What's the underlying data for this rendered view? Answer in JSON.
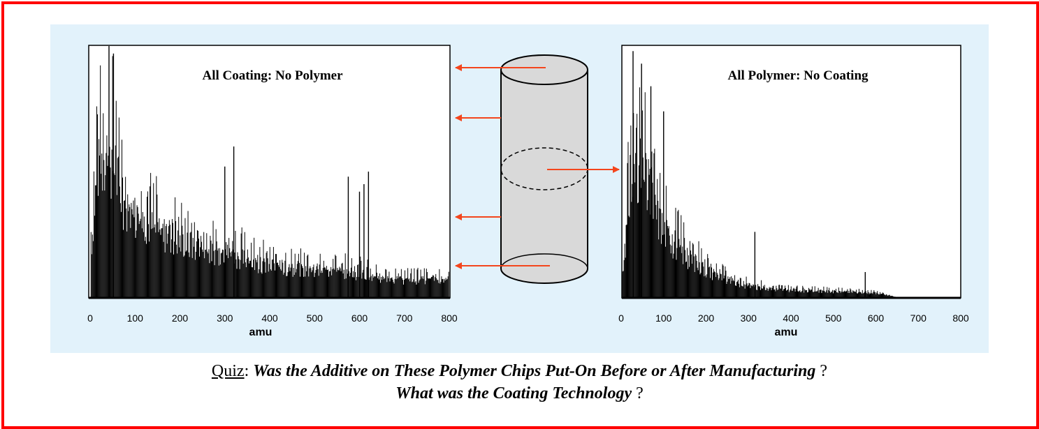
{
  "colors": {
    "frame": "#ff0000",
    "panel": "#e2f2fb",
    "arrow": "#f4451c",
    "cylinder": "#d9d9d9",
    "trace": "#000000"
  },
  "chart_data": [
    {
      "type": "line",
      "title": "All Coating: No Polymer",
      "xlabel": "amu",
      "ylabel": "",
      "xlim": [
        0,
        800
      ],
      "x_ticks": [
        "0",
        "100",
        "200",
        "300",
        "400",
        "500",
        "600",
        "700",
        "800"
      ],
      "grid": false,
      "spectrum": {
        "envelope": [
          [
            0,
            0.25
          ],
          [
            15,
            0.9
          ],
          [
            30,
            0.98
          ],
          [
            50,
            0.98
          ],
          [
            80,
            0.62
          ],
          [
            120,
            0.55
          ],
          [
            160,
            0.46
          ],
          [
            200,
            0.4
          ],
          [
            260,
            0.33
          ],
          [
            300,
            0.32
          ],
          [
            350,
            0.27
          ],
          [
            400,
            0.22
          ],
          [
            450,
            0.2
          ],
          [
            500,
            0.19
          ],
          [
            550,
            0.18
          ],
          [
            600,
            0.17
          ],
          [
            650,
            0.12
          ],
          [
            700,
            0.12
          ],
          [
            800,
            0.12
          ]
        ],
        "prominent_peaks": [
          [
            42,
            1.0
          ],
          [
            52,
            0.97
          ],
          [
            300,
            0.52
          ],
          [
            320,
            0.6
          ],
          [
            575,
            0.48
          ],
          [
            600,
            0.42
          ],
          [
            610,
            0.45
          ],
          [
            620,
            0.5
          ]
        ],
        "baseline_floor": 0.06,
        "spacing_amu": 7
      }
    },
    {
      "type": "line",
      "title": "All Polymer: No Coating",
      "xlabel": "amu",
      "ylabel": "",
      "xlim": [
        0,
        800
      ],
      "x_ticks": [
        "0",
        "100",
        "200",
        "300",
        "400",
        "500",
        "600",
        "700",
        "800"
      ],
      "grid": false,
      "spectrum": {
        "envelope": [
          [
            0,
            0.05
          ],
          [
            20,
            0.75
          ],
          [
            40,
            0.95
          ],
          [
            60,
            0.8
          ],
          [
            90,
            0.55
          ],
          [
            120,
            0.4
          ],
          [
            160,
            0.28
          ],
          [
            200,
            0.2
          ],
          [
            250,
            0.12
          ],
          [
            300,
            0.08
          ],
          [
            350,
            0.06
          ],
          [
            400,
            0.05
          ],
          [
            500,
            0.04
          ],
          [
            600,
            0.03
          ],
          [
            650,
            0.0
          ],
          [
            800,
            0.0
          ]
        ],
        "prominent_peaks": [
          [
            28,
            0.98
          ],
          [
            48,
            0.93
          ],
          [
            70,
            0.84
          ],
          [
            100,
            0.74
          ],
          [
            315,
            0.26
          ],
          [
            575,
            0.1
          ]
        ],
        "baseline_floor": 0.0,
        "spacing_amu": 7
      }
    }
  ],
  "quiz": {
    "label": "Quiz",
    "colon": ":",
    "question1": "Was the Additive on These Polymer Chips Put-On Before or After Manufacturing",
    "qmark1": "?",
    "question2": "What was the Coating Technology",
    "qmark2": "?"
  }
}
